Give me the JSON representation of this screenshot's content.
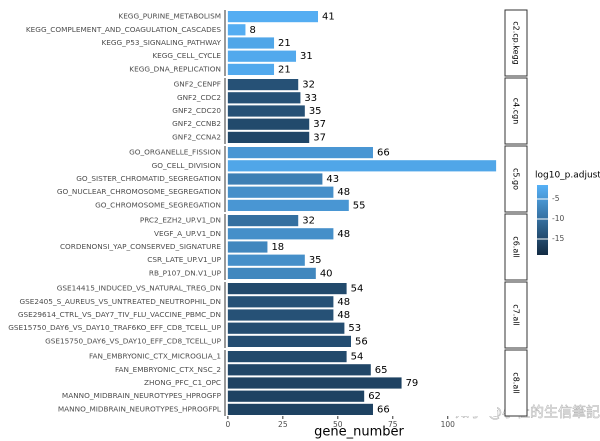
{
  "chart_data": {
    "type": "bar",
    "orientation": "horizontal",
    "x_label": "gene_number",
    "xlim": [
      -1.3,
      122.4
    ],
    "xticks": [
      0,
      25,
      50,
      75,
      100
    ],
    "color_legend": {
      "title": "log10_p.adjust",
      "colorlim": [
        -19,
        -1.5
      ],
      "ticks": [
        -5,
        -10,
        -15
      ],
      "color_low": "#132B43",
      "color_high": "#56B1F7"
    },
    "watermark": "知乎 @小杜的生信筆記",
    "facets": [
      {
        "label": "c2.cp.kegg",
        "categories": [
          "KEGG_PURINE_METABOLISM",
          "KEGG_COMPLEMENT_AND_COAGULATION_CASCADES",
          "KEGG_P53_SIGNALING_PATHWAY",
          "KEGG_CELL_CYCLE",
          "KEGG_DNA_REPLICATION"
        ],
        "values": [
          41,
          8,
          21,
          31,
          21
        ],
        "color_values": [
          -2,
          -2,
          -3,
          -2.5,
          -2.5
        ]
      },
      {
        "label": "c4.cgn",
        "categories": [
          "GNF2_CENPF",
          "GNF2_CDC2",
          "GNF2_CDC20",
          "GNF2_CCNB2",
          "GNF2_CCNA2"
        ],
        "values": [
          32,
          33,
          35,
          37,
          37
        ],
        "color_values": [
          -14,
          -14,
          -14,
          -15,
          -15.5
        ]
      },
      {
        "label": "c5.go",
        "categories": [
          "GO_ORGANELLE_FISSION",
          "GO_CELL_DIVISION",
          "GO_SISTER_CHROMATID_SEGREGATION",
          "GO_NUCLEAR_CHROMOSOME_SEGREGATION",
          "GO_CHROMOSOME_SEGREGATION"
        ],
        "values": [
          66,
          122,
          43,
          48,
          55
        ],
        "color_values": [
          -5,
          -3,
          -8,
          -6,
          -5
        ]
      },
      {
        "label": "c6.all",
        "categories": [
          "PRC2_EZH2_UP.V1_DN",
          "VEGF_A_UP.V1_DN",
          "CORDENONSI_YAP_CONSERVED_SIGNATURE",
          "CSR_LATE_UP.V1_UP",
          "RB_P107_DN.V1_UP"
        ],
        "values": [
          32,
          48,
          18,
          35,
          40
        ],
        "color_values": [
          -10,
          -6,
          -7,
          -6,
          -7
        ]
      },
      {
        "label": "c7.all",
        "categories": [
          "GSE14415_INDUCED_VS_NATURAL_TREG_DN",
          "GSE2405_S_AUREUS_VS_UNTREATED_NEUTROPHIL_DN",
          "GSE29614_CTRL_VS_DAY7_TIV_FLU_VACCINE_PBMC_DN",
          "GSE15750_DAY6_VS_DAY10_TRAF6KO_EFF_CD8_TCELL_UP",
          "GSE15750_DAY6_VS_DAY10_EFF_CD8_TCELL_UP"
        ],
        "values": [
          54,
          48,
          48,
          53,
          56
        ],
        "color_values": [
          -15,
          -14,
          -14,
          -14.5,
          -14.5
        ]
      },
      {
        "label": "c8.all",
        "categories": [
          "FAN_EMBRYONIC_CTX_MICROGLIA_1",
          "FAN_EMBRYONIC_CTX_NSC_2",
          "ZHONG_PFC_C1_OPC",
          "MANNO_MIDBRAIN_NEUROTYPES_HPROGFP",
          "MANNO_MIDBRAIN_NEUROTYPES_HPROGFPL"
        ],
        "values": [
          54,
          65,
          79,
          62,
          66
        ],
        "color_values": [
          -15,
          -15.5,
          -16,
          -16,
          -16
        ]
      }
    ]
  }
}
